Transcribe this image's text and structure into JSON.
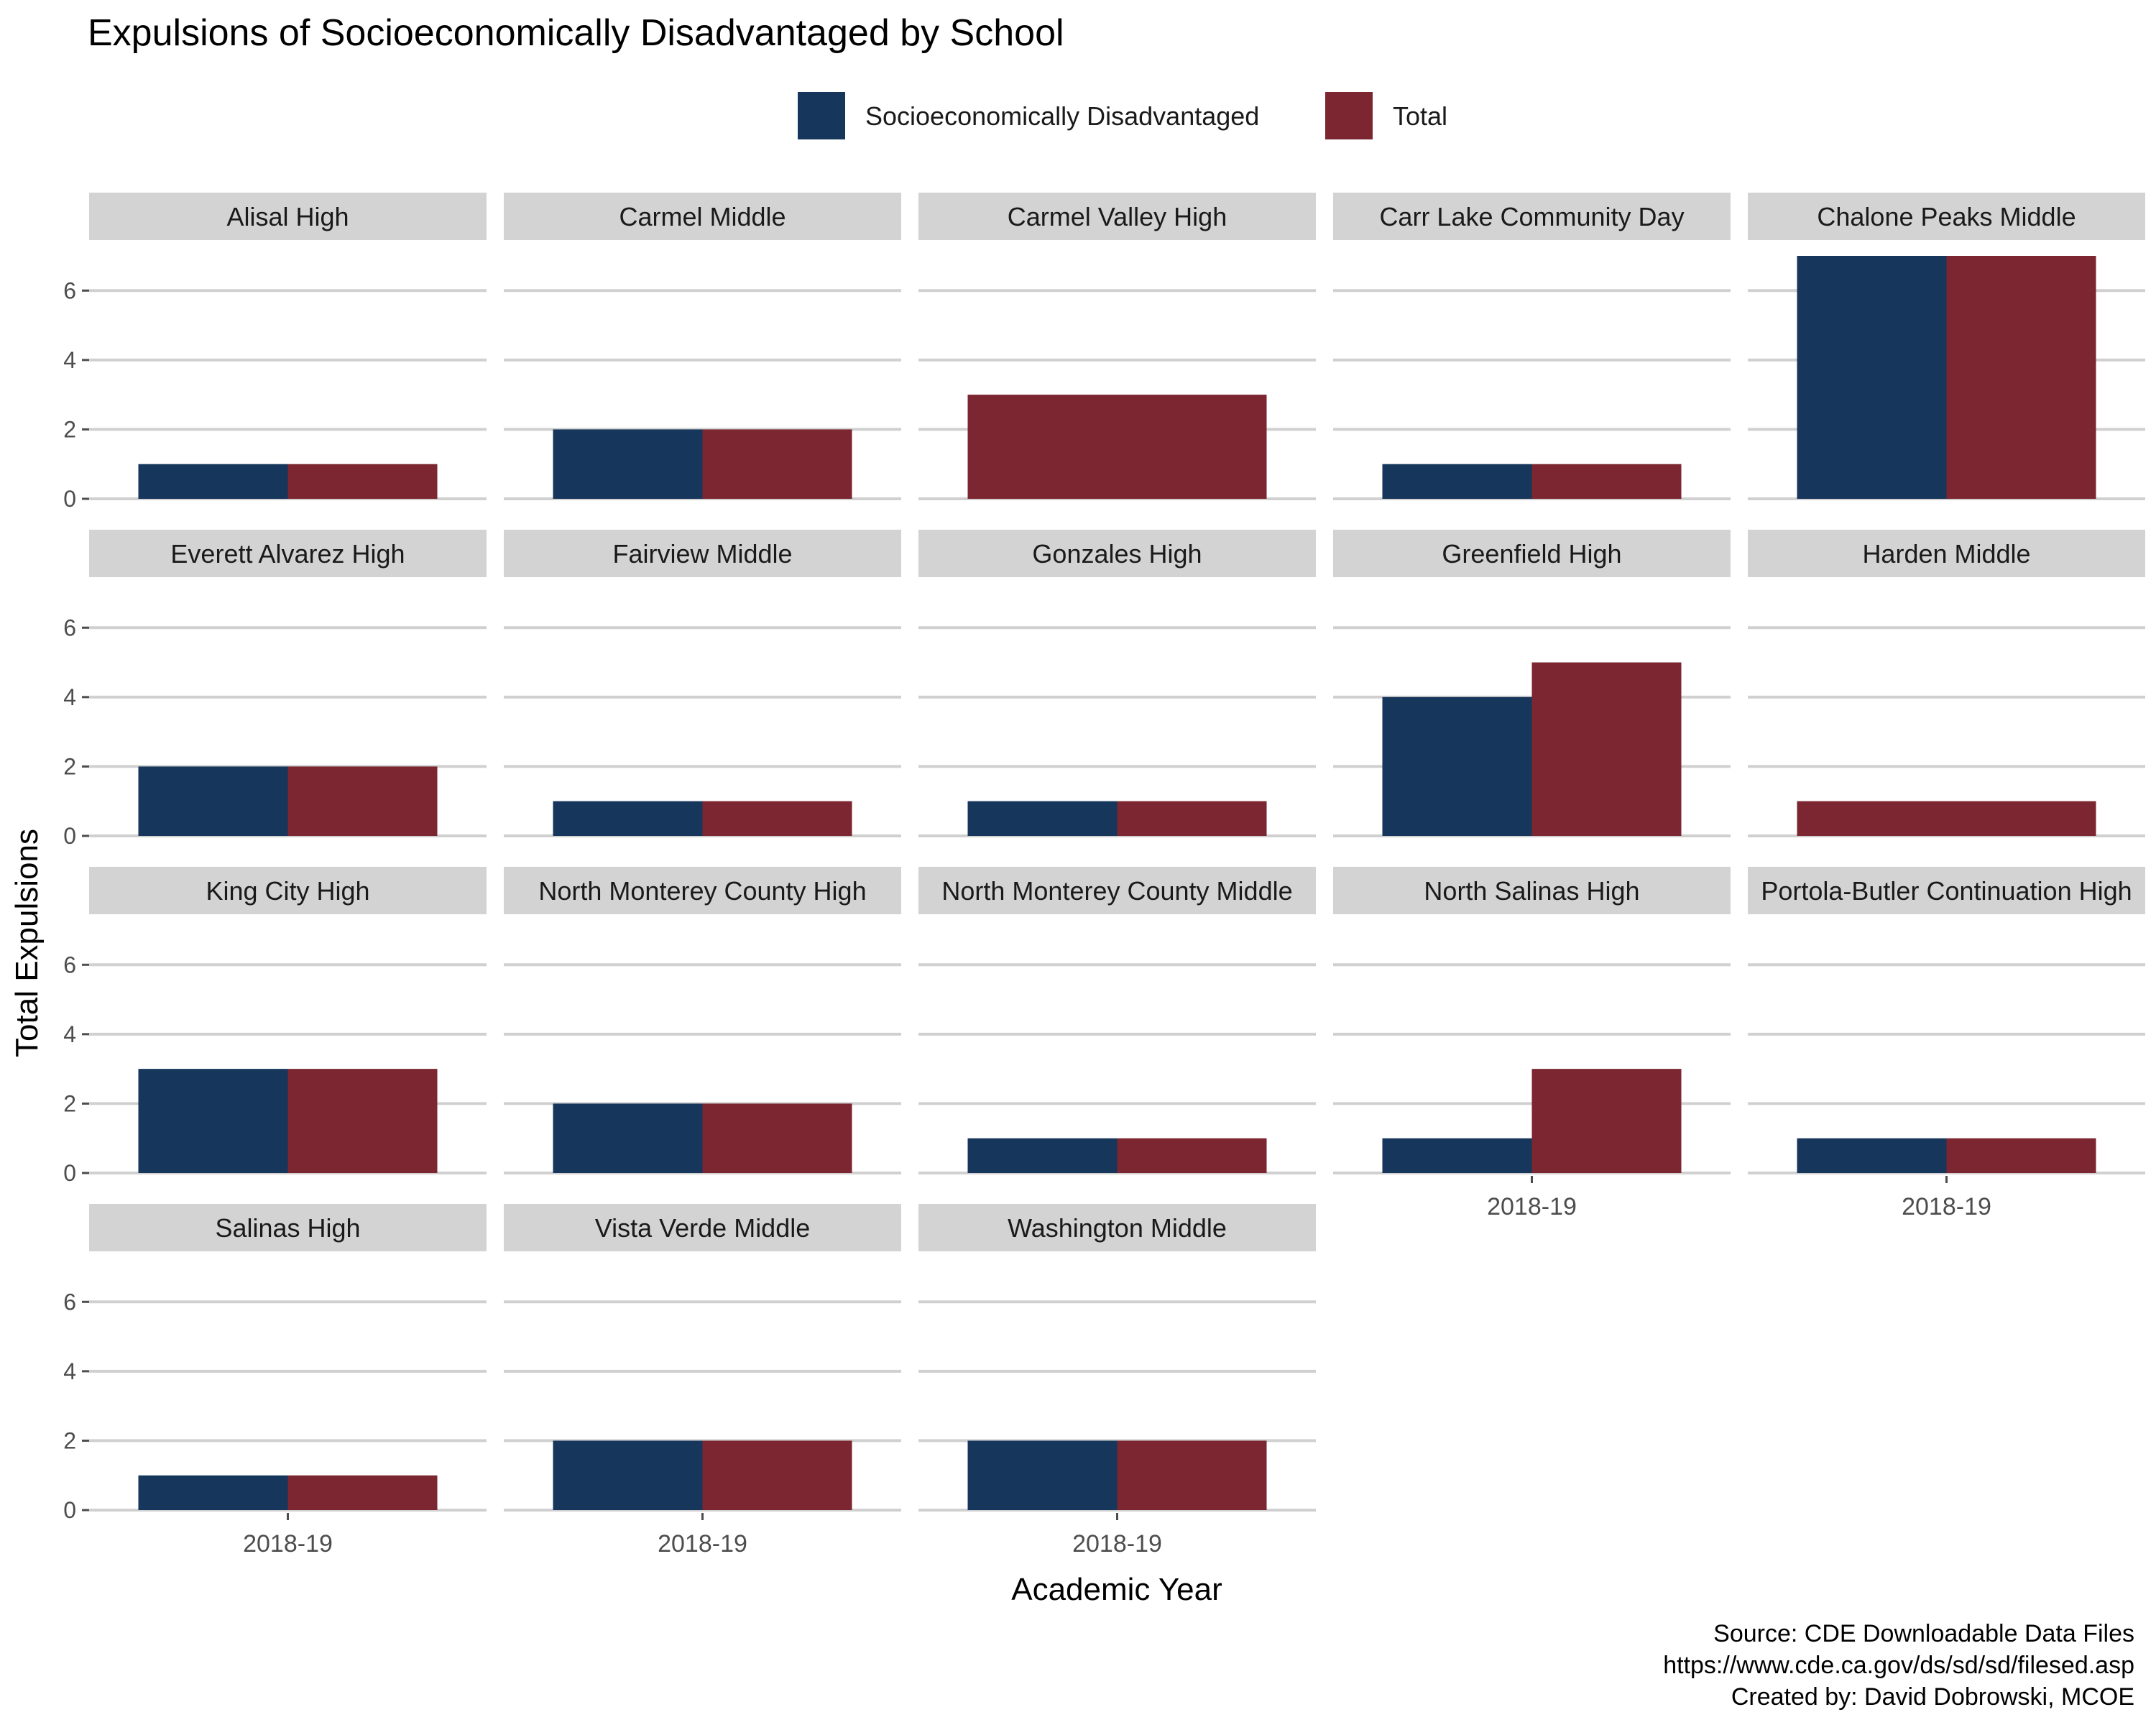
{
  "chart_data": {
    "type": "bar",
    "title": "Expulsions of Socioeconomically Disadvantaged by School",
    "xlabel": "Academic Year",
    "ylabel": "Total Expulsions",
    "ylim": [
      0,
      7
    ],
    "yticks": [
      0,
      2,
      4,
      6
    ],
    "grid": true,
    "legend_position": "top",
    "categories": [
      "2018-19"
    ],
    "series_meta": [
      {
        "name": "Socioeconomically Disadvantaged",
        "color": "#16365c"
      },
      {
        "name": "Total",
        "color": "#7b2630"
      }
    ],
    "facets": [
      {
        "name": "Alisal High",
        "x": "2018-19",
        "values": [
          1,
          1
        ]
      },
      {
        "name": "Carmel Middle",
        "x": "2018-19",
        "values": [
          2,
          2
        ]
      },
      {
        "name": "Carmel Valley High",
        "x": "2018-19",
        "values": [
          null,
          3
        ]
      },
      {
        "name": "Carr Lake Community Day",
        "x": "2018-19",
        "values": [
          1,
          1
        ]
      },
      {
        "name": "Chalone Peaks Middle",
        "x": "2018-19",
        "values": [
          7,
          7
        ]
      },
      {
        "name": "Everett Alvarez High",
        "x": "2018-19",
        "values": [
          2,
          2
        ]
      },
      {
        "name": "Fairview Middle",
        "x": "2018-19",
        "values": [
          1,
          1
        ]
      },
      {
        "name": "Gonzales High",
        "x": "2018-19",
        "values": [
          1,
          1
        ]
      },
      {
        "name": "Greenfield High",
        "x": "2018-19",
        "values": [
          4,
          5
        ]
      },
      {
        "name": "Harden Middle",
        "x": "2018-19",
        "values": [
          null,
          1
        ]
      },
      {
        "name": "King City High",
        "x": "2018-19",
        "values": [
          3,
          3
        ]
      },
      {
        "name": "North Monterey County High",
        "x": "2018-19",
        "values": [
          2,
          2
        ]
      },
      {
        "name": "North Monterey County Middle",
        "x": "2018-19",
        "values": [
          1,
          1
        ]
      },
      {
        "name": "North Salinas High",
        "x": "2018-19",
        "values": [
          1,
          3
        ]
      },
      {
        "name": "Portola-Butler Continuation High",
        "x": "2018-19",
        "values": [
          1,
          1
        ]
      },
      {
        "name": "Salinas High",
        "x": "2018-19",
        "values": [
          1,
          1
        ]
      },
      {
        "name": "Vista Verde Middle",
        "x": "2018-19",
        "values": [
          2,
          2
        ]
      },
      {
        "name": "Washington Middle",
        "x": "2018-19",
        "values": [
          2,
          2
        ]
      }
    ],
    "caption": [
      "Source: CDE Downloadable Data Files",
      "https://www.cde.ca.gov/ds/sd/sd/filesed.asp",
      "Created by: David Dobrowski, MCOE"
    ]
  }
}
